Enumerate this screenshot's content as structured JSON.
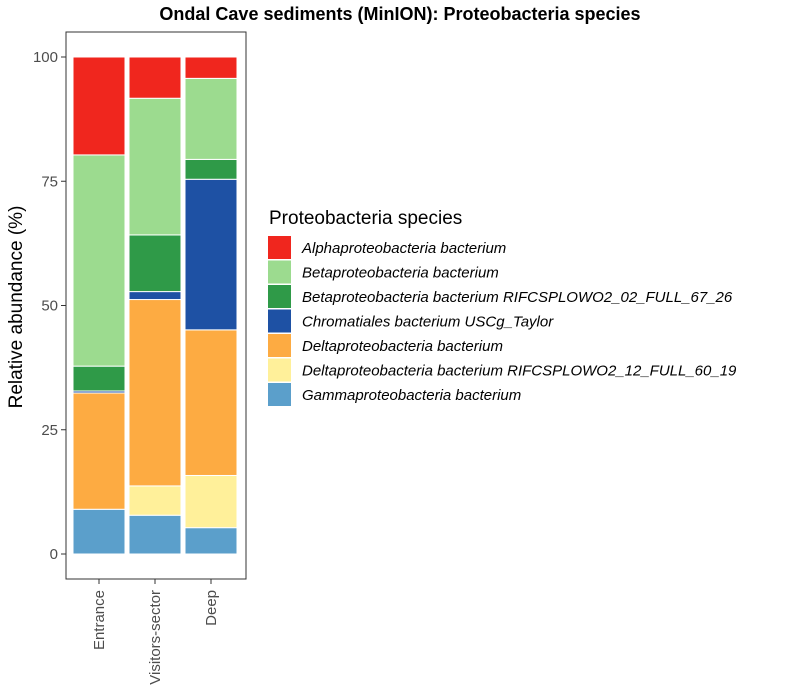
{
  "chart_data": {
    "type": "bar",
    "stacked": true,
    "title": "Ondal Cave sediments (MinION): Proteobacteria species",
    "xlabel": "",
    "ylabel": "Relative abundance (%)",
    "ylim": [
      0,
      100
    ],
    "yticks": [
      0,
      25,
      50,
      75,
      100
    ],
    "categories": [
      "Entrance",
      "Visitors-sector",
      "Deep"
    ],
    "legend_title": "Proteobacteria species",
    "legend_position": "right",
    "series": [
      {
        "name": "Gammaproteobacteria bacterium",
        "color": "#5b9fcb",
        "values": [
          9.0,
          7.8,
          5.3
        ]
      },
      {
        "name": "Deltaproteobacteria bacterium RIFCSPLOWO2_12_FULL_60_19",
        "color": "#fff09a",
        "values": [
          0.0,
          5.9,
          10.5
        ]
      },
      {
        "name": "Deltaproteobacteria bacterium",
        "color": "#fdab42",
        "values": [
          23.4,
          37.5,
          29.3
        ]
      },
      {
        "name": "Chromatiales bacterium USCg_Taylor",
        "color": "#1e51a4",
        "values": [
          0.4,
          1.6,
          30.3
        ]
      },
      {
        "name": "Betaproteobacteria bacterium RIFCSPLOWO2_02_FULL_67_26",
        "color": "#2f9a48",
        "values": [
          5.0,
          11.4,
          4.0
        ]
      },
      {
        "name": "Betaproteobacteria bacterium",
        "color": "#9cdb8f",
        "values": [
          42.5,
          27.5,
          16.3
        ]
      },
      {
        "name": "Alphaproteobacteria bacterium",
        "color": "#f0261e",
        "values": [
          19.7,
          8.3,
          4.3
        ]
      }
    ],
    "legend_order": [
      "Alphaproteobacteria bacterium",
      "Betaproteobacteria bacterium",
      "Betaproteobacteria bacterium RIFCSPLOWO2_02_FULL_67_26",
      "Chromatiales bacterium USCg_Taylor",
      "Deltaproteobacteria bacterium",
      "Deltaproteobacteria bacterium RIFCSPLOWO2_12_FULL_60_19",
      "Gammaproteobacteria bacterium"
    ]
  }
}
